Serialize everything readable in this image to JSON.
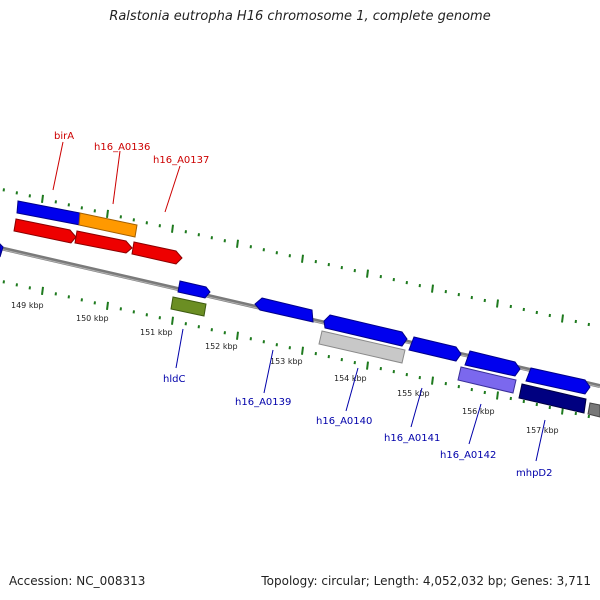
{
  "title": "Ralstonia eutropha H16 chromosome 1, complete genome",
  "footer": {
    "accession": "Accession: NC_008313",
    "summary": "Topology: circular; Length: 4,052,032 bp; Genes: 3,711"
  },
  "colors": {
    "backbone": "#8a8a8a",
    "tick": "#1e7a1e",
    "label_upper": "#cc0000",
    "label_lower": "#0000aa",
    "kbp_text": "#222222"
  },
  "kbp_labels": [
    "149 kbp",
    "150 kbp",
    "151 kbp",
    "152 kbp",
    "153 kbp",
    "154 kbp",
    "155 kbp",
    "156 kbp",
    "157 kbp"
  ],
  "gene_labels_upper": [
    "birA",
    "h16_A0136",
    "h16_A0137"
  ],
  "gene_labels_lower": [
    "hldC",
    "h16_A0139",
    "h16_A0140",
    "h16_A0141",
    "h16_A0142",
    "mhpD2"
  ]
}
